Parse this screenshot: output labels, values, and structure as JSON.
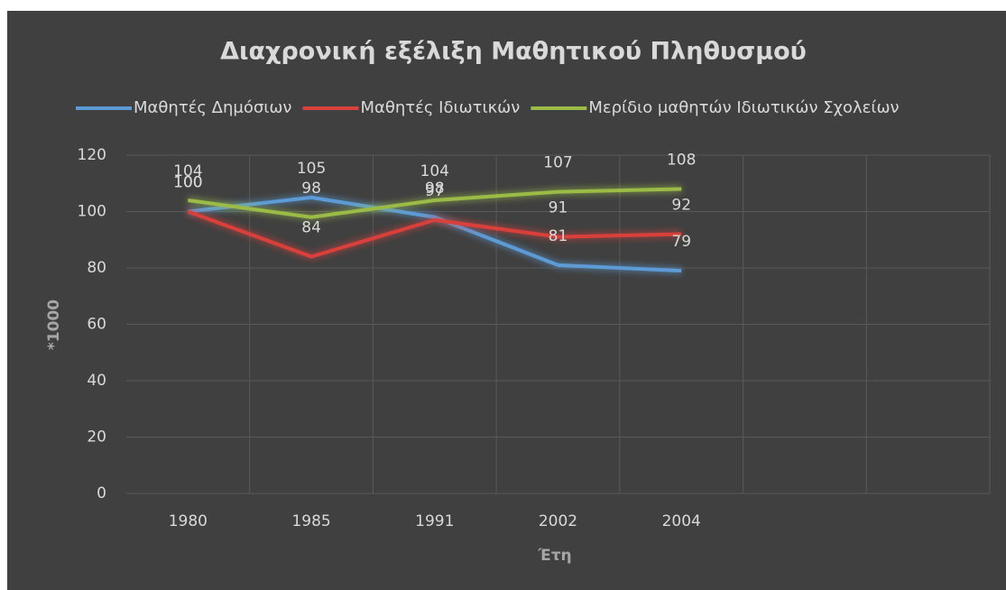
{
  "chart_data": {
    "type": "line",
    "title": "Διαχρονική εξέλιξη Μαθητικού Πληθυσμού",
    "x_label": "Έτη",
    "y_label": "*1000",
    "categories": [
      "1980",
      "1985",
      "1991",
      "2002",
      "2004",
      null,
      null
    ],
    "series": [
      {
        "name": "Μαθητές Δημόσιων",
        "color": "#5b9bd5",
        "values": [
          100,
          105,
          98,
          81,
          79,
          null,
          null
        ]
      },
      {
        "name": "Μαθητές Ιδιωτικών",
        "color": "#d9413b",
        "values": [
          100,
          84,
          97,
          91,
          92,
          null,
          null
        ]
      },
      {
        "name": "Μερίδιο μαθητών Ιδιωτικών Σχολείων",
        "color": "#9bbb47",
        "values": [
          104,
          98,
          104,
          107,
          108,
          null,
          null
        ]
      }
    ],
    "ylim": [
      0,
      120
    ],
    "yticks": [
      0,
      20,
      40,
      60,
      80,
      100,
      120
    ],
    "grid": true,
    "legend": "top",
    "background": "#404040"
  }
}
